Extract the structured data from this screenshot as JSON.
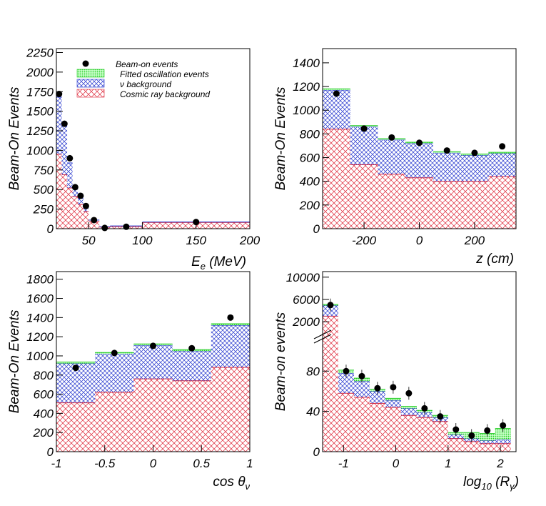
{
  "colors": {
    "signal": "#22cc22",
    "nu": "#2233cc",
    "cosmic": "#dd2233",
    "data": "#000000"
  },
  "legend": {
    "items": [
      {
        "label": "Beam-on events",
        "kind": "data"
      },
      {
        "label": "Fitted oscillation events",
        "kind": "signal"
      },
      {
        "label": "ν background",
        "kind": "nu"
      },
      {
        "label": "Cosmic ray background",
        "kind": "cosmic"
      }
    ]
  },
  "chart_data": [
    {
      "type": "bar",
      "title": "",
      "xlabel": "E_e (MeV)",
      "ylabel": "Beam-On Events",
      "xlim": [
        20,
        200
      ],
      "ylim": [
        0,
        2300
      ],
      "xticks": [
        {
          "v": 50,
          "label": "50"
        },
        {
          "v": 100,
          "label": "100"
        },
        {
          "v": 150,
          "label": "150"
        },
        {
          "v": 200,
          "label": "200"
        }
      ],
      "yticks": [
        {
          "v": 0,
          "label": "0"
        },
        {
          "v": 250,
          "label": "250"
        },
        {
          "v": 500,
          "label": "500"
        },
        {
          "v": 750,
          "label": "750"
        },
        {
          "v": 1000,
          "label": "1000"
        },
        {
          "v": 1250,
          "label": "1250"
        },
        {
          "v": 1500,
          "label": "1500"
        },
        {
          "v": 1750,
          "label": "1750"
        },
        {
          "v": 2000,
          "label": "2000"
        },
        {
          "v": 2250,
          "label": "2250"
        }
      ],
      "edges": [
        20,
        25,
        30,
        35,
        40,
        45,
        50,
        60,
        70,
        100,
        200
      ],
      "cosmic": [
        950,
        690,
        520,
        410,
        310,
        220,
        90,
        20,
        30,
        80
      ],
      "nu": [
        730,
        640,
        320,
        100,
        80,
        60,
        20,
        5,
        5,
        5
      ],
      "signal": [
        0,
        0,
        0,
        0,
        0,
        0,
        0,
        0,
        0,
        0
      ],
      "data_points": [
        {
          "x": 22.5,
          "y": 1720
        },
        {
          "x": 27.5,
          "y": 1340
        },
        {
          "x": 32.5,
          "y": 900
        },
        {
          "x": 37.5,
          "y": 530
        },
        {
          "x": 42.5,
          "y": 420
        },
        {
          "x": 47.5,
          "y": 290
        },
        {
          "x": 55,
          "y": 110
        },
        {
          "x": 65,
          "y": 10
        },
        {
          "x": 85,
          "y": 25
        },
        {
          "x": 150,
          "y": 85
        }
      ]
    },
    {
      "type": "bar",
      "title": "",
      "xlabel": "z (cm)",
      "ylabel": "Beam-On Events",
      "xlim": [
        -350,
        350
      ],
      "ylim": [
        0,
        1520
      ],
      "xticks": [
        {
          "v": -200,
          "label": "-200"
        },
        {
          "v": 0,
          "label": "0"
        },
        {
          "v": 200,
          "label": "200"
        }
      ],
      "yticks": [
        {
          "v": 0,
          "label": "0"
        },
        {
          "v": 200,
          "label": "200"
        },
        {
          "v": 400,
          "label": "400"
        },
        {
          "v": 600,
          "label": "600"
        },
        {
          "v": 800,
          "label": "800"
        },
        {
          "v": 1000,
          "label": "1000"
        },
        {
          "v": 1200,
          "label": "1200"
        },
        {
          "v": 1400,
          "label": "1400"
        }
      ],
      "edges": [
        -350,
        -250,
        -150,
        -50,
        50,
        150,
        250,
        350
      ],
      "cosmic": [
        840,
        540,
        460,
        430,
        400,
        400,
        440
      ],
      "nu": [
        330,
        320,
        290,
        290,
        240,
        220,
        195
      ],
      "signal": [
        10,
        10,
        10,
        10,
        10,
        10,
        10
      ],
      "data_points": [
        {
          "x": -300,
          "y": 1140
        },
        {
          "x": -200,
          "y": 845
        },
        {
          "x": -100,
          "y": 770
        },
        {
          "x": 0,
          "y": 725
        },
        {
          "x": 100,
          "y": 660
        },
        {
          "x": 200,
          "y": 640
        },
        {
          "x": 300,
          "y": 695
        }
      ]
    },
    {
      "type": "bar",
      "title": "",
      "xlabel": "cos θν",
      "ylabel": "Beam-On Events",
      "xlim": [
        -1,
        1
      ],
      "ylim": [
        0,
        1880
      ],
      "xticks": [
        {
          "v": -1,
          "label": "-1"
        },
        {
          "v": -0.5,
          "label": "-0.5"
        },
        {
          "v": 0,
          "label": "0"
        },
        {
          "v": 0.5,
          "label": "0.5"
        },
        {
          "v": 1,
          "label": "1"
        }
      ],
      "yticks": [
        {
          "v": 0,
          "label": "0"
        },
        {
          "v": 200,
          "label": "200"
        },
        {
          "v": 400,
          "label": "400"
        },
        {
          "v": 600,
          "label": "600"
        },
        {
          "v": 800,
          "label": "800"
        },
        {
          "v": 1000,
          "label": "1000"
        },
        {
          "v": 1200,
          "label": "1200"
        },
        {
          "v": 1400,
          "label": "1400"
        },
        {
          "v": 1600,
          "label": "1600"
        },
        {
          "v": 1800,
          "label": "1800"
        }
      ],
      "edges": [
        -1,
        -0.6,
        -0.2,
        0.2,
        0.6,
        1
      ],
      "cosmic": [
        510,
        620,
        760,
        740,
        880
      ],
      "nu": [
        410,
        400,
        350,
        310,
        440
      ],
      "signal": [
        15,
        15,
        15,
        15,
        15
      ],
      "data_points": [
        {
          "x": -0.8,
          "y": 875
        },
        {
          "x": -0.4,
          "y": 1030
        },
        {
          "x": 0,
          "y": 1105
        },
        {
          "x": 0.4,
          "y": 1080
        },
        {
          "x": 0.8,
          "y": 1400
        }
      ]
    },
    {
      "type": "bar",
      "title": "",
      "xlabel": "log10 (Rγ)",
      "ylabel": "Beam-on events",
      "xlim": [
        -1.4,
        2.3
      ],
      "ylim": [
        0,
        110
      ],
      "y_break": "axis break between 80 and 2000",
      "xticks": [
        {
          "v": -1,
          "label": "-1"
        },
        {
          "v": 0,
          "label": "0"
        },
        {
          "v": 1,
          "label": "1"
        },
        {
          "v": 2,
          "label": "2"
        }
      ],
      "yticks": [
        {
          "v": 0,
          "label": "0"
        },
        {
          "v": 40,
          "label": "40"
        },
        {
          "v": 80,
          "label": "80"
        },
        {
          "v": 2000,
          "label": "2000"
        },
        {
          "v": 6000,
          "label": "6000"
        },
        {
          "v": 10000,
          "label": "10000"
        }
      ],
      "edges": [
        -1.4,
        -1.1,
        -0.8,
        -0.5,
        -0.2,
        0.1,
        0.4,
        0.7,
        1.0,
        1.3,
        1.6,
        1.9,
        2.2
      ],
      "cosmic": [
        3000,
        58,
        54,
        48,
        44,
        36,
        34,
        30,
        13,
        10,
        8,
        8
      ],
      "nu": [
        1900,
        20,
        16,
        12,
        7,
        7,
        5,
        4,
        4,
        3,
        3,
        4
      ],
      "signal": [
        200,
        3,
        3,
        2,
        2,
        2,
        2,
        2,
        2,
        6,
        7,
        11
      ],
      "data_points": [
        {
          "x": -1.25,
          "y": 5000
        },
        {
          "x": -0.95,
          "y": 80
        },
        {
          "x": -0.65,
          "y": 75
        },
        {
          "x": -0.35,
          "y": 63
        },
        {
          "x": -0.05,
          "y": 64
        },
        {
          "x": 0.25,
          "y": 58
        },
        {
          "x": 0.55,
          "y": 43
        },
        {
          "x": 0.85,
          "y": 35
        },
        {
          "x": 1.15,
          "y": 22
        },
        {
          "x": 1.45,
          "y": 16
        },
        {
          "x": 1.75,
          "y": 21
        },
        {
          "x": 2.05,
          "y": 26
        }
      ]
    }
  ]
}
